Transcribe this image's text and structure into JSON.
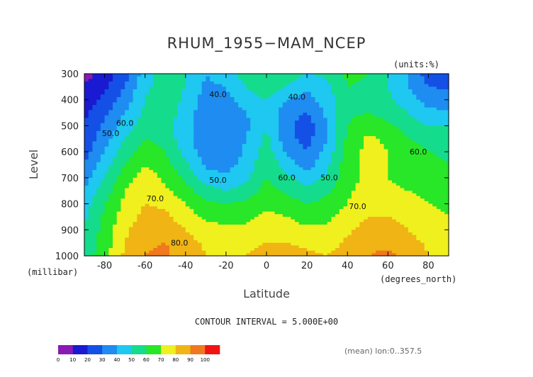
{
  "chart_data": {
    "type": "heatmap",
    "title": "RHUM_1955−MAM_NCEP",
    "units_label": "(units:%)",
    "xlabel": "Latitude",
    "ylabel": "Level",
    "x_units": "(degrees_north)",
    "y_units": "(millibar)",
    "xlim": [
      -90,
      90
    ],
    "ylim": [
      1000,
      300
    ],
    "x_ticks": [
      -80,
      -60,
      -40,
      -20,
      0,
      20,
      40,
      60,
      80
    ],
    "y_ticks": [
      300,
      400,
      500,
      600,
      700,
      800,
      900,
      1000
    ],
    "contour_interval_text": "CONTOUR INTERVAL = 5.000E+00",
    "meta_text": "(mean) lon:0..357.5",
    "colorbar": {
      "levels": [
        0,
        10,
        20,
        30,
        40,
        50,
        60,
        70,
        80,
        90,
        100
      ],
      "colors": [
        "#8a1ab4",
        "#1a1ad2",
        "#1450e6",
        "#1e8cf0",
        "#1ec8f0",
        "#14dc8c",
        "#28e628",
        "#f0f01e",
        "#f0b414",
        "#f0781e",
        "#f01414"
      ]
    },
    "contour_labels": [
      {
        "text": "40.0",
        "lat": -24,
        "p": 390
      },
      {
        "text": "40.0",
        "lat": 15,
        "p": 400
      },
      {
        "text": "50.0",
        "lat": -77,
        "p": 540
      },
      {
        "text": "60.0",
        "lat": -70,
        "p": 500
      },
      {
        "text": "50.0",
        "lat": -24,
        "p": 720
      },
      {
        "text": "60.0",
        "lat": 10,
        "p": 710
      },
      {
        "text": "50.0",
        "lat": 31,
        "p": 710
      },
      {
        "text": "70.0",
        "lat": -55,
        "p": 790
      },
      {
        "text": "70.0",
        "lat": 45,
        "p": 820
      },
      {
        "text": "60.0",
        "lat": 75,
        "p": 610
      },
      {
        "text": "80.0",
        "lat": -43,
        "p": 960
      }
    ],
    "grid_lat": [
      -90,
      -80,
      -70,
      -60,
      -50,
      -40,
      -30,
      -20,
      -10,
      0,
      10,
      20,
      30,
      40,
      50,
      60,
      70,
      80,
      90
    ],
    "grid_p": [
      300,
      350,
      400,
      450,
      500,
      550,
      600,
      650,
      700,
      750,
      800,
      850,
      900,
      950,
      1000
    ],
    "values": [
      [
        5,
        15,
        25,
        45,
        55,
        50,
        40,
        45,
        55,
        58,
        55,
        50,
        52,
        62,
        60,
        50,
        40,
        25,
        22
      ],
      [
        12,
        18,
        30,
        48,
        55,
        50,
        38,
        40,
        50,
        55,
        50,
        42,
        48,
        60,
        58,
        50,
        40,
        30,
        28
      ],
      [
        15,
        22,
        35,
        50,
        56,
        48,
        35,
        37,
        45,
        50,
        40,
        36,
        45,
        58,
        58,
        52,
        45,
        36,
        34
      ],
      [
        18,
        28,
        40,
        52,
        55,
        46,
        33,
        32,
        40,
        46,
        34,
        30,
        42,
        58,
        60,
        56,
        50,
        42,
        42
      ],
      [
        20,
        32,
        45,
        55,
        54,
        44,
        31,
        30,
        38,
        50,
        33,
        24,
        40,
        60,
        66,
        62,
        56,
        50,
        50
      ],
      [
        22,
        36,
        50,
        60,
        56,
        44,
        31,
        30,
        40,
        52,
        34,
        26,
        40,
        62,
        72,
        68,
        60,
        56,
        55
      ],
      [
        25,
        40,
        55,
        65,
        60,
        47,
        34,
        32,
        42,
        55,
        38,
        30,
        44,
        64,
        73,
        70,
        64,
        60,
        58
      ],
      [
        30,
        45,
        60,
        70,
        64,
        52,
        38,
        36,
        44,
        58,
        45,
        35,
        48,
        66,
        72,
        70,
        66,
        63,
        60
      ],
      [
        35,
        50,
        65,
        75,
        68,
        58,
        45,
        42,
        48,
        60,
        52,
        44,
        52,
        66,
        72,
        70,
        67,
        64,
        62
      ],
      [
        40,
        55,
        70,
        78,
        72,
        64,
        54,
        50,
        54,
        64,
        58,
        52,
        58,
        68,
        74,
        72,
        70,
        68,
        65
      ],
      [
        45,
        60,
        72,
        80,
        78,
        70,
        62,
        60,
        62,
        68,
        65,
        60,
        64,
        70,
        76,
        76,
        74,
        70,
        68
      ],
      [
        48,
        62,
        75,
        83,
        82,
        75,
        68,
        66,
        68,
        72,
        70,
        66,
        68,
        74,
        80,
        80,
        76,
        72,
        70
      ],
      [
        50,
        64,
        78,
        86,
        86,
        80,
        74,
        72,
        72,
        76,
        74,
        72,
        72,
        78,
        84,
        84,
        80,
        74,
        72
      ],
      [
        52,
        65,
        80,
        89,
        90,
        84,
        78,
        76,
        76,
        80,
        80,
        78,
        76,
        82,
        88,
        88,
        84,
        78,
        74
      ],
      [
        55,
        66,
        82,
        90,
        92,
        86,
        80,
        78,
        80,
        84,
        84,
        82,
        80,
        84,
        90,
        92,
        88,
        80,
        76
      ]
    ]
  }
}
